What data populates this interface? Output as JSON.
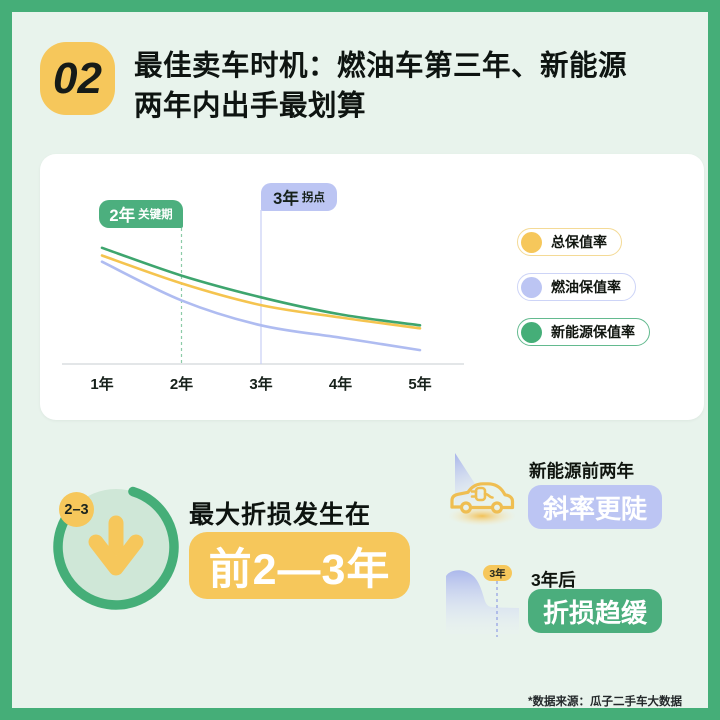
{
  "page": {
    "bg_color": "#E8F3EC",
    "frame_color": "#45AE78",
    "footer_note": "*数据来源：瓜子二手车大数据"
  },
  "header": {
    "badge": "02",
    "title_line1": "最佳卖车时机：燃油车第三年、新能源",
    "title_line2": "两年内出手最划算"
  },
  "chart_data": {
    "type": "line",
    "categories": [
      "1年",
      "2年",
      "3年",
      "4年",
      "5年"
    ],
    "series": [
      {
        "name": "总保值率",
        "color": "#F5C44F",
        "values": [
          70,
          52,
          38,
          30,
          23
        ]
      },
      {
        "name": "燃油保值率",
        "color": "#AFBCF1",
        "values": [
          66,
          41,
          25,
          17,
          9
        ]
      },
      {
        "name": "新能源保值率",
        "color": "#3EA56E",
        "values": [
          75,
          57,
          43,
          32,
          25
        ]
      }
    ],
    "annotations": [
      {
        "at": "2年",
        "big": "2年",
        "small": "关键期",
        "color": "#4CAF7E"
      },
      {
        "at": "3年",
        "big": "3年",
        "small": "拐点",
        "color": "#BCC5F3"
      }
    ],
    "y_axis_visible": false,
    "ylim": [
      0,
      100
    ],
    "grid": false,
    "legend_position": "right"
  },
  "legend": [
    {
      "label": "总保值率",
      "color": "#F6C75B"
    },
    {
      "label": "燃油保值率",
      "color": "#BCC5F3"
    },
    {
      "label": "新能源保值率",
      "color": "#45AE78"
    }
  ],
  "takeaway": {
    "badge": "2–3",
    "heading": "最大折损发生在",
    "highlight": "前2—3年",
    "highlight_bg": "#F6C75B"
  },
  "notes": [
    {
      "title": "新能源前两年",
      "highlight": "斜率更陡",
      "highlight_bg": "#BCC5F3",
      "icon": "ev-car-slope-icon"
    },
    {
      "title": "3年后",
      "highlight": "折损趋缓",
      "highlight_bg": "#4BAE7D",
      "icon": "decline-curve-icon",
      "icon_badge": "3年"
    }
  ]
}
